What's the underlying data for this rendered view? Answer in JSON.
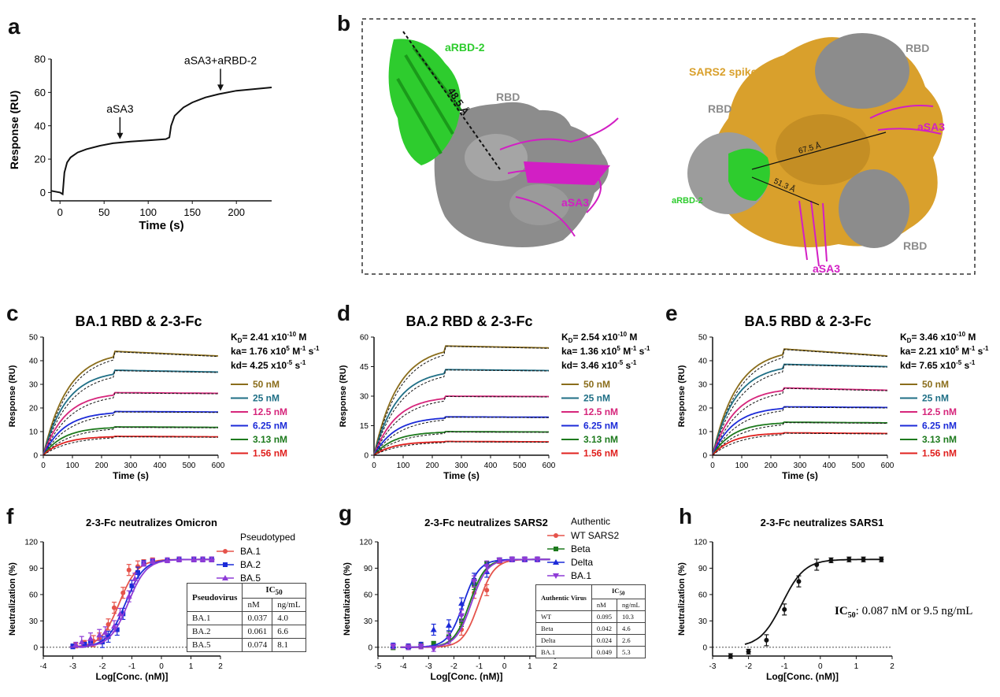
{
  "panels": {
    "a": "a",
    "b": "b",
    "c": "c",
    "d": "d",
    "e": "e",
    "f": "f",
    "g": "g",
    "h": "h"
  },
  "panel_b": {
    "aRBD2": "aRBD-2",
    "rbd": "RBD",
    "aSA3": "aSA3",
    "dist1": "48.5 Å",
    "spike": "SARS2 spike",
    "dist2": "67.5 Å",
    "dist3": "51.3 Å",
    "colors": {
      "green": "#2ecc2e",
      "magenta": "#d21fc4",
      "gray": "#8c8c8c",
      "gold": "#d9a02c"
    }
  },
  "chart_data": [
    {
      "id": "a",
      "type": "line",
      "xlabel": "Time (s)",
      "ylabel": "Response (RU)",
      "xlim": [
        -10,
        240
      ],
      "ylim": [
        -5,
        80
      ],
      "xticks": [
        0,
        50,
        100,
        150,
        200
      ],
      "yticks": [
        0,
        20,
        40,
        60,
        80
      ],
      "series": [
        {
          "x": [
            -10,
            0,
            3,
            5,
            8,
            12,
            20,
            30,
            45,
            60,
            80,
            100,
            120,
            124,
            126,
            130,
            140,
            150,
            165,
            180,
            200,
            220,
            240
          ],
          "y": [
            1,
            0,
            -1,
            12,
            18,
            21,
            24,
            26,
            28,
            29.5,
            30.5,
            31.2,
            32,
            33,
            40,
            46,
            51,
            54,
            57,
            59,
            61,
            62,
            63
          ]
        }
      ],
      "annotations": [
        {
          "text": "aSA3",
          "x": 68,
          "y": 31
        },
        {
          "text": "aSA3+aRBD-2",
          "x": 182,
          "y": 60
        }
      ]
    },
    {
      "id": "c",
      "type": "line",
      "title": "BA.1 RBD & 2-3-Fc",
      "xlabel": "Time (s)",
      "ylabel": "Response (RU)",
      "xlim": [
        0,
        600
      ],
      "ylim": [
        0,
        50
      ],
      "xticks": [
        0,
        100,
        200,
        300,
        400,
        500,
        600
      ],
      "yticks": [
        0,
        10,
        20,
        30,
        40,
        50
      ],
      "assoc_end": 240,
      "series": [
        {
          "name": "50 nM",
          "plateau": 44,
          "end": 42,
          "color": "#8a6d1b"
        },
        {
          "name": "25 nM",
          "plateau": 36,
          "end": 35.2,
          "color": "#1f6f86"
        },
        {
          "name": "12.5 nM",
          "plateau": 26.5,
          "end": 26.2,
          "color": "#d6257b"
        },
        {
          "name": "6.25 nM",
          "plateau": 18.5,
          "end": 18.3,
          "color": "#1c2bd8"
        },
        {
          "name": "3.13 nM",
          "plateau": 12,
          "end": 11.8,
          "color": "#1d7a1d"
        },
        {
          "name": "1.56 nM",
          "plateau": 8,
          "end": 7.8,
          "color": "#e0201e"
        }
      ],
      "kinetics": {
        "KD": "2.41 x10",
        "KD_exp": "-10",
        "KD_unit": " M",
        "ka": "1.76 x10",
        "ka_exp": "5",
        "ka_unit": " M",
        "kd": "4.25 x10",
        "kd_exp": "-5",
        "kd_unit": " s"
      }
    },
    {
      "id": "d",
      "type": "line",
      "title": "BA.2 RBD & 2-3-Fc",
      "xlabel": "Time (s)",
      "ylabel": "Response (RU)",
      "xlim": [
        0,
        600
      ],
      "ylim": [
        0,
        60
      ],
      "xticks": [
        0,
        100,
        200,
        300,
        400,
        500,
        600
      ],
      "yticks": [
        0,
        15,
        30,
        45,
        60
      ],
      "assoc_end": 240,
      "series": [
        {
          "name": "50 nM",
          "plateau": 55.5,
          "end": 54.5,
          "color": "#8a6d1b"
        },
        {
          "name": "25 nM",
          "plateau": 43.5,
          "end": 43,
          "color": "#1f6f86"
        },
        {
          "name": "12.5 nM",
          "plateau": 30,
          "end": 29.8,
          "color": "#d6257b"
        },
        {
          "name": "6.25 nM",
          "plateau": 19.5,
          "end": 19.3,
          "color": "#1c2bd8"
        },
        {
          "name": "3.13 nM",
          "plateau": 12,
          "end": 11.8,
          "color": "#1d7a1d"
        },
        {
          "name": "1.56 nM",
          "plateau": 7,
          "end": 6.8,
          "color": "#e0201e"
        }
      ],
      "kinetics": {
        "KD": "2.54 x10",
        "KD_exp": "-10",
        "KD_unit": " M",
        "ka": "1.36 x10",
        "ka_exp": "5",
        "ka_unit": " M",
        "kd": "3.46 x10",
        "kd_exp": "-5",
        "kd_unit": " s"
      }
    },
    {
      "id": "e",
      "type": "line",
      "title": "BA.5 RBD & 2-3-Fc",
      "xlabel": "Time (s)",
      "ylabel": "Response (RU)",
      "xlim": [
        0,
        600
      ],
      "ylim": [
        0,
        50
      ],
      "xticks": [
        0,
        100,
        200,
        300,
        400,
        500,
        600
      ],
      "yticks": [
        0,
        10,
        20,
        30,
        40,
        50
      ],
      "assoc_end": 240,
      "series": [
        {
          "name": "50 nM",
          "plateau": 45,
          "end": 42,
          "color": "#8a6d1b"
        },
        {
          "name": "25 nM",
          "plateau": 38.5,
          "end": 37.5,
          "color": "#1f6f86"
        },
        {
          "name": "12.5 nM",
          "plateau": 28.5,
          "end": 27.5,
          "color": "#d6257b"
        },
        {
          "name": "6.25 nM",
          "plateau": 20.5,
          "end": 20.2,
          "color": "#1c2bd8"
        },
        {
          "name": "3.13 nM",
          "plateau": 14,
          "end": 13.7,
          "color": "#1d7a1d"
        },
        {
          "name": "1.56 nM",
          "plateau": 9.5,
          "end": 9.2,
          "color": "#e0201e"
        }
      ],
      "kinetics": {
        "KD": "3.46 x10",
        "KD_exp": "-10",
        "KD_unit": " M",
        "ka": "2.21 x10",
        "ka_exp": "5",
        "ka_unit": " M",
        "kd": "7.65 x10",
        "kd_exp": "-5",
        "kd_unit": " s"
      }
    },
    {
      "id": "f",
      "type": "scatter",
      "title": "2-3-Fc neutralizes Omicron",
      "xlabel": "Log[Conc. (nM)]",
      "ylabel": "Neutralization (%)",
      "xlim": [
        -4,
        2
      ],
      "ylim": [
        -10,
        120
      ],
      "xticks": [
        -4,
        -3,
        -2,
        -1,
        0,
        1,
        2
      ],
      "yticks": [
        0,
        30,
        60,
        90,
        120
      ],
      "legend_title": "Pseudotyped",
      "series": [
        {
          "name": "BA.1",
          "color": "#e5534b",
          "marker": "circle",
          "logIC50": -1.43,
          "x": [
            -2.9,
            -2.6,
            -2.3,
            -2.1,
            -1.8,
            -1.6,
            -1.3,
            -1.1,
            -0.8,
            -0.6,
            -0.3,
            0.2,
            0.6,
            1.1,
            1.4,
            1.7
          ],
          "y": [
            2,
            5,
            7,
            10,
            26,
            45,
            62,
            88,
            92,
            97,
            99,
            99,
            100,
            100,
            100,
            100
          ]
        },
        {
          "name": "BA.2",
          "color": "#1c2bd8",
          "marker": "square",
          "logIC50": -1.22,
          "x": [
            -3.0,
            -2.6,
            -2.4,
            -2.0,
            -1.8,
            -1.5,
            -1.3,
            -1.0,
            -0.8,
            -0.6,
            -0.3,
            0.2,
            0.6,
            1.1,
            1.4,
            1.7
          ],
          "y": [
            1,
            3,
            5,
            6,
            12,
            20,
            38,
            70,
            85,
            96,
            98,
            99,
            100,
            100,
            100,
            100
          ]
        },
        {
          "name": "BA.5",
          "color": "#8e3bd6",
          "marker": "triangle",
          "logIC50": -1.13,
          "x": [
            -2.9,
            -2.7,
            -2.4,
            -2.1,
            -1.9,
            -1.6,
            -1.4,
            -1.1,
            -0.9,
            -0.6,
            -0.3,
            0.2,
            0.6,
            1.1,
            1.4,
            1.7
          ],
          "y": [
            3,
            6,
            10,
            14,
            17,
            24,
            38,
            58,
            78,
            95,
            98,
            99,
            100,
            100,
            100,
            100
          ]
        }
      ],
      "table": {
        "header": [
          "Pseudovirus",
          "IC50"
        ],
        "sub": [
          "nM",
          "ng/mL"
        ],
        "rows": [
          [
            "BA.1",
            "0.037",
            "4.0"
          ],
          [
            "BA.2",
            "0.061",
            "6.6"
          ],
          [
            "BA.5",
            "0.074",
            "8.1"
          ]
        ]
      }
    },
    {
      "id": "g",
      "type": "scatter",
      "title": "2-3-Fc neutralizes SARS2",
      "xlabel": "Log[Conc. (nM)]",
      "ylabel": "Neutralization (%)",
      "xlim": [
        -5,
        2
      ],
      "ylim": [
        -10,
        120
      ],
      "xticks": [
        -5,
        -4,
        -3,
        -2,
        -1,
        0,
        1,
        2
      ],
      "yticks": [
        0,
        30,
        60,
        90,
        120
      ],
      "legend_title": "Authentic",
      "series": [
        {
          "name": "WT SARS2",
          "color": "#e5534b",
          "marker": "circle",
          "logIC50": -1.02,
          "x": [
            -4.4,
            -3.8,
            -3.3,
            -2.8,
            -2.2,
            -1.7,
            -1.2,
            -0.7,
            -0.2,
            0.3,
            0.8,
            1.3
          ],
          "y": [
            0,
            1,
            1,
            3,
            12,
            20,
            62,
            65,
            98,
            100,
            100,
            100
          ]
        },
        {
          "name": "Beta",
          "color": "#1d7a1d",
          "marker": "square",
          "logIC50": -1.38,
          "x": [
            -4.4,
            -3.8,
            -3.3,
            -2.8,
            -2.2,
            -1.7,
            -1.2,
            -0.7,
            -0.2,
            0.3,
            0.8,
            1.3
          ],
          "y": [
            0,
            0,
            2,
            4,
            12,
            30,
            72,
            95,
            99,
            100,
            100,
            100
          ]
        },
        {
          "name": "Delta",
          "color": "#1c2bd8",
          "marker": "triangle",
          "logIC50": -1.62,
          "x": [
            -4.4,
            -3.8,
            -3.3,
            -2.8,
            -2.2,
            -1.7,
            -1.2,
            -0.7,
            -0.2,
            0.3,
            0.8,
            1.3
          ],
          "y": [
            2,
            1,
            3,
            20,
            25,
            50,
            78,
            86,
            99,
            100,
            100,
            100
          ]
        },
        {
          "name": "BA.1",
          "color": "#8e3bd6",
          "marker": "tri-down",
          "logIC50": -1.31,
          "x": [
            -4.4,
            -3.8,
            -3.3,
            -2.8,
            -2.2,
            -1.7,
            -1.2,
            -0.7,
            -0.2,
            0.3,
            0.8,
            1.3
          ],
          "y": [
            1,
            0,
            1,
            -2,
            10,
            36,
            75,
            92,
            99,
            100,
            100,
            100
          ]
        }
      ],
      "table": {
        "header": [
          "Authentic Virus",
          "IC50"
        ],
        "sub": [
          "nM",
          "ng/mL"
        ],
        "rows": [
          [
            "WT",
            "0.095",
            "10.3"
          ],
          [
            "Beta",
            "0.042",
            "4.6"
          ],
          [
            "Delta",
            "0.024",
            "2.6"
          ],
          [
            "BA.1",
            "0.049",
            "5.3"
          ]
        ]
      }
    },
    {
      "id": "h",
      "type": "scatter",
      "title": "2-3-Fc neutralizes SARS1",
      "xlabel": "Log[Conc. (nM)]",
      "ylabel": "Neutralization (%)",
      "xlim": [
        -3,
        2
      ],
      "ylim": [
        -10,
        120
      ],
      "xticks": [
        -3,
        -2,
        -1,
        0,
        1,
        2
      ],
      "yticks": [
        0,
        30,
        60,
        90,
        120
      ],
      "series": [
        {
          "name": "",
          "color": "#111111",
          "marker": "circle",
          "logIC50": -1.06,
          "x": [
            -2.5,
            -2.0,
            -1.5,
            -1.0,
            -0.6,
            -0.1,
            0.3,
            0.8,
            1.2,
            1.7
          ],
          "y": [
            -10,
            -5,
            8,
            43,
            75,
            94,
            99,
            100,
            100,
            100
          ]
        }
      ],
      "annotation": {
        "label": "IC",
        "sub": "50",
        "text": ": 0.087 nM or 9.5 ng/mL"
      }
    }
  ]
}
